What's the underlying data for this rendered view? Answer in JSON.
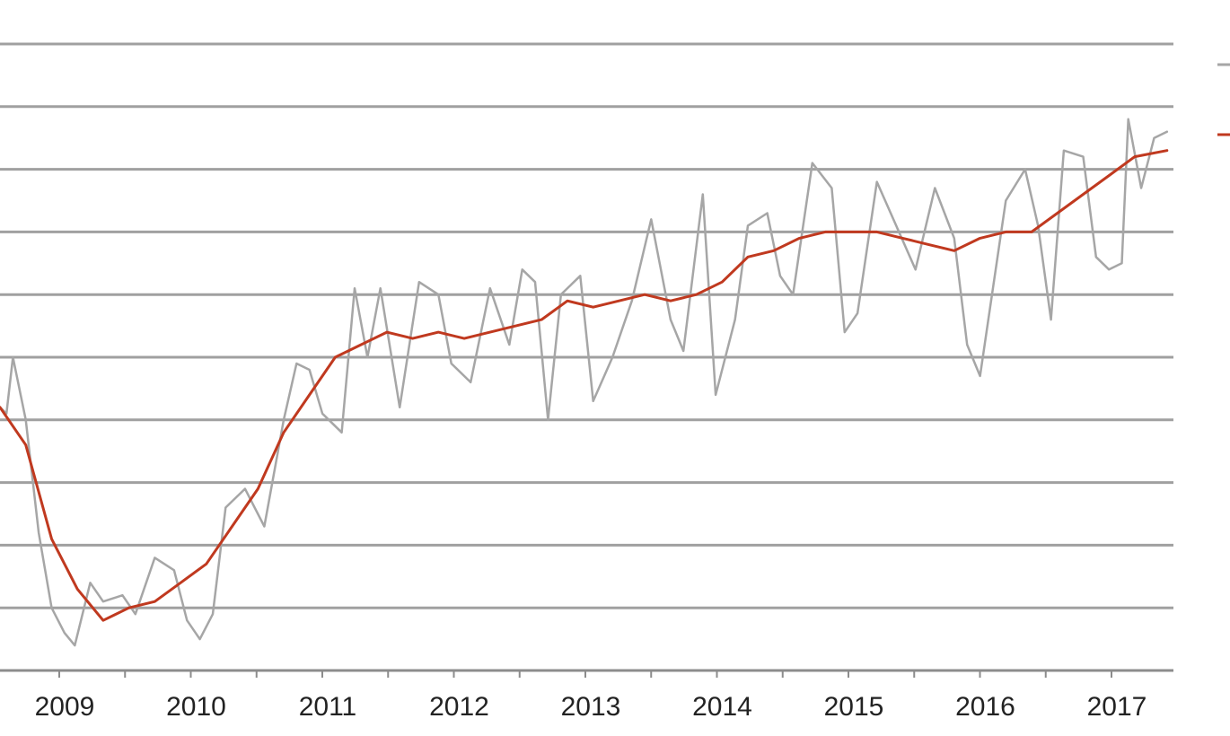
{
  "chart_data": {
    "type": "line",
    "title": "",
    "xlabel": "",
    "ylabel": "",
    "grid": true,
    "legend_position": "right",
    "x_tick_labels": [
      "2009",
      "2010",
      "2011",
      "2012",
      "2013",
      "2014",
      "2015",
      "2016",
      "2017"
    ],
    "series_colors": [
      "#a6a6a6",
      "#c0391f"
    ],
    "series": [
      {
        "values": [
          [
            2008.5,
            4.2
          ],
          [
            2008.55,
            4.1
          ],
          [
            2008.6,
            5.0
          ],
          [
            2008.7,
            4.0
          ],
          [
            2008.8,
            2.2
          ],
          [
            2008.9,
            1.0
          ],
          [
            2009.0,
            0.6
          ],
          [
            2009.08,
            0.4
          ],
          [
            2009.2,
            1.4
          ],
          [
            2009.3,
            1.1
          ],
          [
            2009.45,
            1.2
          ],
          [
            2009.55,
            0.9
          ],
          [
            2009.7,
            1.8
          ],
          [
            2009.85,
            1.6
          ],
          [
            2009.95,
            0.8
          ],
          [
            2010.05,
            0.5
          ],
          [
            2010.15,
            0.9
          ],
          [
            2010.25,
            2.6
          ],
          [
            2010.4,
            2.9
          ],
          [
            2010.55,
            2.3
          ],
          [
            2010.7,
            4.0
          ],
          [
            2010.8,
            4.9
          ],
          [
            2010.9,
            4.8
          ],
          [
            2011.0,
            4.1
          ],
          [
            2011.15,
            3.8
          ],
          [
            2011.25,
            6.1
          ],
          [
            2011.35,
            5.0
          ],
          [
            2011.45,
            6.1
          ],
          [
            2011.6,
            4.2
          ],
          [
            2011.75,
            6.2
          ],
          [
            2011.9,
            6.0
          ],
          [
            2012.0,
            4.9
          ],
          [
            2012.15,
            4.6
          ],
          [
            2012.3,
            6.1
          ],
          [
            2012.45,
            5.2
          ],
          [
            2012.55,
            6.4
          ],
          [
            2012.65,
            6.2
          ],
          [
            2012.75,
            4.0
          ],
          [
            2012.85,
            6.0
          ],
          [
            2013.0,
            6.3
          ],
          [
            2013.1,
            4.3
          ],
          [
            2013.25,
            5.0
          ],
          [
            2013.4,
            5.9
          ],
          [
            2013.55,
            7.2
          ],
          [
            2013.7,
            5.6
          ],
          [
            2013.8,
            5.1
          ],
          [
            2013.95,
            7.6
          ],
          [
            2014.05,
            4.4
          ],
          [
            2014.2,
            5.6
          ],
          [
            2014.3,
            7.1
          ],
          [
            2014.45,
            7.3
          ],
          [
            2014.55,
            6.3
          ],
          [
            2014.65,
            6.0
          ],
          [
            2014.8,
            8.1
          ],
          [
            2014.95,
            7.7
          ],
          [
            2015.05,
            5.4
          ],
          [
            2015.15,
            5.7
          ],
          [
            2015.3,
            7.8
          ],
          [
            2015.45,
            7.1
          ],
          [
            2015.6,
            6.4
          ],
          [
            2015.75,
            7.7
          ],
          [
            2015.9,
            6.9
          ],
          [
            2016.0,
            5.2
          ],
          [
            2016.1,
            4.7
          ],
          [
            2016.3,
            7.5
          ],
          [
            2016.45,
            8.0
          ],
          [
            2016.55,
            7.1
          ],
          [
            2016.65,
            5.6
          ],
          [
            2016.75,
            8.3
          ],
          [
            2016.9,
            8.2
          ],
          [
            2017.0,
            6.6
          ],
          [
            2017.1,
            6.4
          ],
          [
            2017.2,
            6.5
          ],
          [
            2017.25,
            8.8
          ],
          [
            2017.35,
            7.7
          ],
          [
            2017.45,
            8.5
          ],
          [
            2017.55,
            8.6
          ]
        ]
      },
      {
        "values": [
          [
            2008.5,
            4.2
          ],
          [
            2008.7,
            3.6
          ],
          [
            2008.9,
            2.1
          ],
          [
            2009.1,
            1.3
          ],
          [
            2009.3,
            0.8
          ],
          [
            2009.5,
            1.0
          ],
          [
            2009.7,
            1.1
          ],
          [
            2009.9,
            1.4
          ],
          [
            2010.1,
            1.7
          ],
          [
            2010.3,
            2.3
          ],
          [
            2010.5,
            2.9
          ],
          [
            2010.7,
            3.8
          ],
          [
            2010.9,
            4.4
          ],
          [
            2011.1,
            5.0
          ],
          [
            2011.3,
            5.2
          ],
          [
            2011.5,
            5.4
          ],
          [
            2011.7,
            5.3
          ],
          [
            2011.9,
            5.4
          ],
          [
            2012.1,
            5.3
          ],
          [
            2012.3,
            5.4
          ],
          [
            2012.5,
            5.5
          ],
          [
            2012.7,
            5.6
          ],
          [
            2012.9,
            5.9
          ],
          [
            2013.1,
            5.8
          ],
          [
            2013.3,
            5.9
          ],
          [
            2013.5,
            6.0
          ],
          [
            2013.7,
            5.9
          ],
          [
            2013.9,
            6.0
          ],
          [
            2014.1,
            6.2
          ],
          [
            2014.3,
            6.6
          ],
          [
            2014.5,
            6.7
          ],
          [
            2014.7,
            6.9
          ],
          [
            2014.9,
            7.0
          ],
          [
            2015.1,
            7.0
          ],
          [
            2015.3,
            7.0
          ],
          [
            2015.5,
            6.9
          ],
          [
            2015.7,
            6.8
          ],
          [
            2015.9,
            6.7
          ],
          [
            2016.1,
            6.9
          ],
          [
            2016.3,
            7.0
          ],
          [
            2016.5,
            7.0
          ],
          [
            2016.7,
            7.3
          ],
          [
            2016.9,
            7.6
          ],
          [
            2017.1,
            7.9
          ],
          [
            2017.3,
            8.2
          ],
          [
            2017.55,
            8.3
          ]
        ]
      }
    ]
  }
}
